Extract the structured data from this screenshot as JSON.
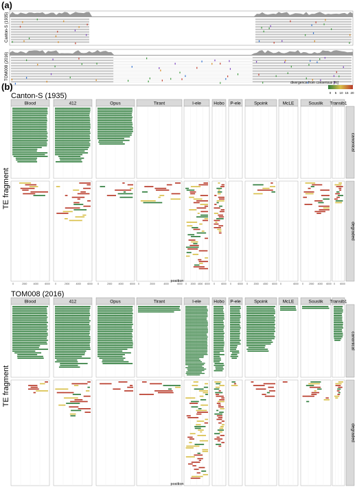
{
  "panel_a": {
    "label": "(a)",
    "tracks": [
      {
        "name": "Canton-S (1935)"
      },
      {
        "name": "TOM008 (2016)"
      }
    ]
  },
  "panel_b": {
    "label": "(b)",
    "legend_title": "divergence from consensus [%]",
    "legend_ticks": [
      "0",
      "5",
      "10",
      "15",
      "20"
    ],
    "colors": {
      "canonical": "#2f7d3c",
      "low": "#2f7d3c",
      "mid": "#d9c04a",
      "high": "#b83a2a"
    }
  },
  "chart_data": [
    {
      "type": "bar",
      "title": "Canton-S (1935)",
      "xlabel": "position",
      "ylabel": "TE fragment",
      "x_ticks": [
        "0",
        "2000",
        "4000",
        "6000"
      ],
      "facet_columns": [
        "Blood",
        "412",
        "Opus",
        "Tirant",
        "I-ele",
        "Hobo",
        "P-ele",
        "Spoink",
        "McLE",
        "Souslik",
        "Transib1"
      ],
      "facet_rows": [
        "canonical",
        "degraded"
      ],
      "approx_fragment_counts": {
        "canonical": [
          31,
          31,
          21,
          0,
          0,
          0,
          0,
          0,
          0,
          0,
          0
        ],
        "degraded": [
          8,
          22,
          9,
          12,
          49,
          29,
          0,
          7,
          0,
          18,
          12
        ]
      }
    },
    {
      "type": "bar",
      "title": "TOM008 (2016)",
      "xlabel": "position",
      "ylabel": "TE fragment",
      "x_ticks": [
        "0",
        "2000",
        "4000",
        "6000"
      ],
      "facet_columns": [
        "Blood",
        "412",
        "Opus",
        "Tirant",
        "I-ele",
        "Hobo",
        "P-ele",
        "Spoink",
        "McLE",
        "Souslik",
        "Transib1"
      ],
      "facet_rows": [
        "canonical",
        "degraded"
      ],
      "approx_fragment_counts": {
        "canonical": [
          30,
          35,
          33,
          4,
          48,
          37,
          30,
          26,
          3,
          2,
          20
        ],
        "degraded": [
          7,
          20,
          6,
          8,
          55,
          37,
          3,
          9,
          1,
          12,
          10
        ]
      }
    }
  ]
}
